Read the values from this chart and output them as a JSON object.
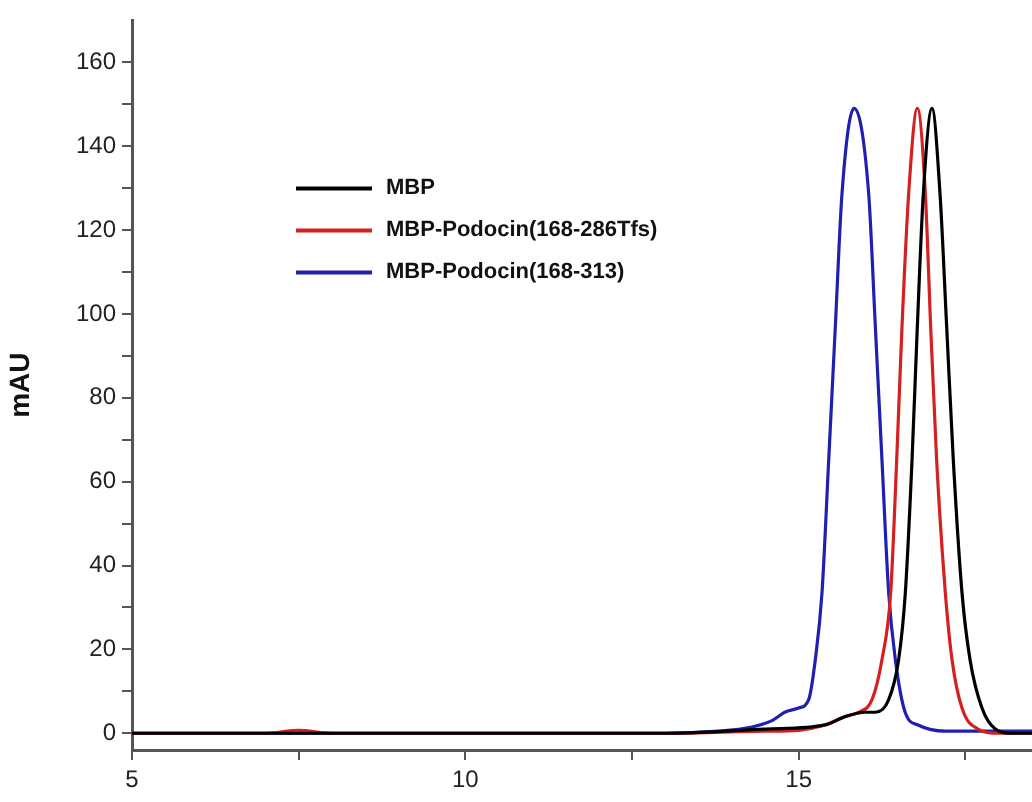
{
  "chart_data": {
    "type": "line",
    "ylabel": "mAU",
    "xlim": [
      5,
      18.5
    ],
    "ylim": [
      -4,
      170
    ],
    "xticks": [
      5,
      {
        "value": 7.5,
        "label": null
      },
      10,
      {
        "value": 12.5,
        "label": null
      },
      15,
      {
        "value": 17.5,
        "label": null
      }
    ],
    "yticks": [
      0,
      {
        "value": 10,
        "label": null
      },
      20,
      {
        "value": 30,
        "label": null
      },
      40,
      {
        "value": 50,
        "label": null
      },
      60,
      {
        "value": 70,
        "label": null
      },
      80,
      {
        "value": 90,
        "label": null
      },
      100,
      {
        "value": 110,
        "label": null
      },
      120,
      {
        "value": 130,
        "label": null
      },
      140,
      {
        "value": 150,
        "label": null
      },
      160
    ],
    "grid": false,
    "legend": "top left",
    "marker": "none",
    "line_style": "solid",
    "series": [
      {
        "name": "MBP",
        "color": "#000000",
        "x": [
          5,
          13,
          14.5,
          15.4,
          15.7,
          16.0,
          16.15,
          16.35,
          16.5,
          16.6,
          16.7,
          16.78,
          16.87,
          17.0,
          17.12,
          17.22,
          17.32,
          17.45,
          17.57,
          17.75,
          17.95,
          18.2,
          18.5
        ],
        "values": [
          0,
          0,
          1,
          2,
          4,
          5,
          5,
          8,
          17.6,
          33.5,
          65,
          97,
          128.7,
          149,
          128.7,
          97,
          65,
          33.5,
          17.6,
          6,
          1,
          0,
          0
        ]
      },
      {
        "name": "MBP-Podocin(168-286Tfs)",
        "color": "#d42020",
        "x": [
          5,
          7,
          7.5,
          8,
          13,
          14.5,
          15.0,
          15.4,
          15.7,
          15.9,
          16.1,
          16.25,
          16.38,
          16.47,
          16.55,
          16.65,
          16.78,
          16.9,
          16.98,
          17.07,
          17.2,
          17.3,
          17.45,
          17.69,
          18.0,
          18.5
        ],
        "values": [
          0,
          0,
          0.7,
          0,
          0,
          0.5,
          0.7,
          2,
          4,
          5,
          8,
          17.6,
          33.5,
          65,
          97,
          128.7,
          149,
          128.7,
          97,
          65,
          33.5,
          17.6,
          6,
          1,
          0,
          0
        ]
      },
      {
        "name": "MBP-Podocin(168-313)",
        "color": "#2020b0",
        "x": [
          5,
          13,
          13.8,
          14.3,
          14.6,
          14.79,
          15.0,
          15.15,
          15.25,
          15.35,
          15.45,
          15.55,
          15.65,
          15.83,
          16.05,
          16.15,
          16.25,
          16.35,
          16.45,
          16.6,
          16.8,
          17.2,
          18.5
        ],
        "values": [
          0,
          0,
          0.5,
          1.5,
          3,
          5,
          6,
          8,
          17.6,
          33.5,
          65,
          97,
          128.7,
          149,
          128.7,
          97,
          65,
          33.5,
          17.6,
          4.9,
          1.9,
          0.5,
          0.5
        ]
      }
    ]
  }
}
